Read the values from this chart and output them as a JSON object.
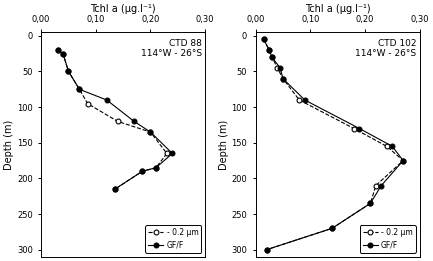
{
  "panel1": {
    "title_line1": "CTD 88",
    "title_line2": "114°W - 26°S",
    "gff_depth": [
      20,
      25,
      50,
      75,
      90,
      120,
      135,
      165,
      185,
      190,
      215
    ],
    "gff_chl": [
      0.03,
      0.04,
      0.05,
      0.07,
      0.12,
      0.17,
      0.2,
      0.24,
      0.21,
      0.185,
      0.135
    ],
    "um02_depth": [
      20,
      25,
      50,
      75,
      95,
      120,
      135,
      165,
      185,
      190,
      215
    ],
    "um02_chl": [
      0.03,
      0.04,
      0.05,
      0.07,
      0.085,
      0.14,
      0.2,
      0.23,
      0.21,
      0.185,
      0.135
    ]
  },
  "panel2": {
    "title_line1": "CTD 102",
    "title_line2": "114°W - 26°S",
    "gff_depth": [
      5,
      20,
      30,
      45,
      60,
      90,
      130,
      155,
      175,
      210,
      235,
      270,
      300
    ],
    "gff_chl": [
      0.015,
      0.025,
      0.03,
      0.045,
      0.05,
      0.09,
      0.19,
      0.25,
      0.27,
      0.23,
      0.21,
      0.14,
      0.02
    ],
    "um02_depth": [
      5,
      20,
      30,
      45,
      60,
      90,
      130,
      155,
      175,
      210,
      235,
      270,
      300
    ],
    "um02_chl": [
      0.015,
      0.025,
      0.03,
      0.04,
      0.05,
      0.08,
      0.18,
      0.24,
      0.27,
      0.22,
      0.21,
      0.14,
      0.02
    ]
  },
  "xlim": [
    0.0,
    0.3
  ],
  "xticks": [
    0.0,
    0.1,
    0.2,
    0.3
  ],
  "xticklabels": [
    "0,00",
    "0,10",
    "0,20",
    "0,30"
  ],
  "ylim": [
    310,
    -5
  ],
  "yticks": [
    0,
    50,
    100,
    150,
    200,
    250,
    300
  ],
  "yticklabels": [
    "0",
    "50",
    "100",
    "150",
    "200",
    "250",
    "300"
  ],
  "xlabel": "Tchl a (µg.l⁻¹)",
  "ylabel": "Depth (m)",
  "legend_labels": [
    "- 0.2 µm",
    "GF/F"
  ],
  "background_color": "#ffffff"
}
